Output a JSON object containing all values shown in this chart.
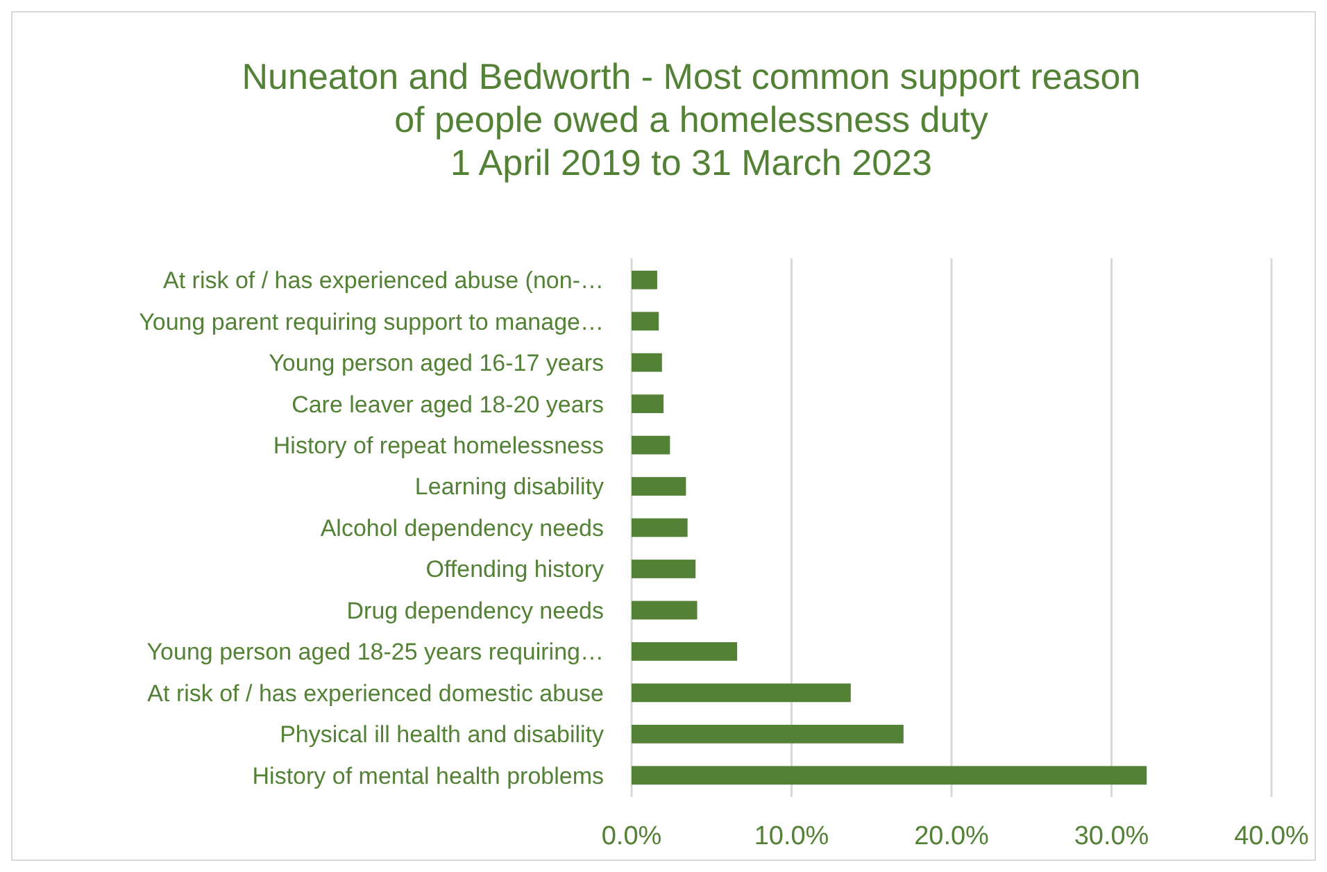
{
  "chart_data": {
    "type": "bar",
    "orientation": "horizontal",
    "title": "Nuneaton and Bedworth - Most common support reason of people owed a homelessness duty\n1 April 2019 to 31 March 2023",
    "categories": [
      "At risk of / has experienced abuse (non-…",
      "Young parent requiring support to manage…",
      "Young person aged 16-17 years",
      "Care leaver aged 18-20 years",
      "History of repeat homelessness",
      "Learning disability",
      "Alcohol dependency needs",
      "Offending history",
      "Drug dependency needs",
      "Young person aged 18-25 years requiring…",
      "At risk of / has experienced domestic abuse",
      "Physical ill health and disability",
      "History of mental health problems"
    ],
    "values": [
      1.6,
      1.7,
      1.9,
      2.0,
      2.4,
      3.4,
      3.5,
      4.0,
      4.1,
      6.6,
      13.7,
      17.0,
      32.2
    ],
    "color": "#538135",
    "xlim": [
      0,
      40
    ],
    "xticks": [
      {
        "value": 0,
        "label": "0.0%"
      },
      {
        "value": 10,
        "label": "10.0%"
      },
      {
        "value": 20,
        "label": "20.0%"
      },
      {
        "value": 30,
        "label": "30.0%"
      },
      {
        "value": 40,
        "label": "40.0%"
      }
    ],
    "grid": "x"
  }
}
